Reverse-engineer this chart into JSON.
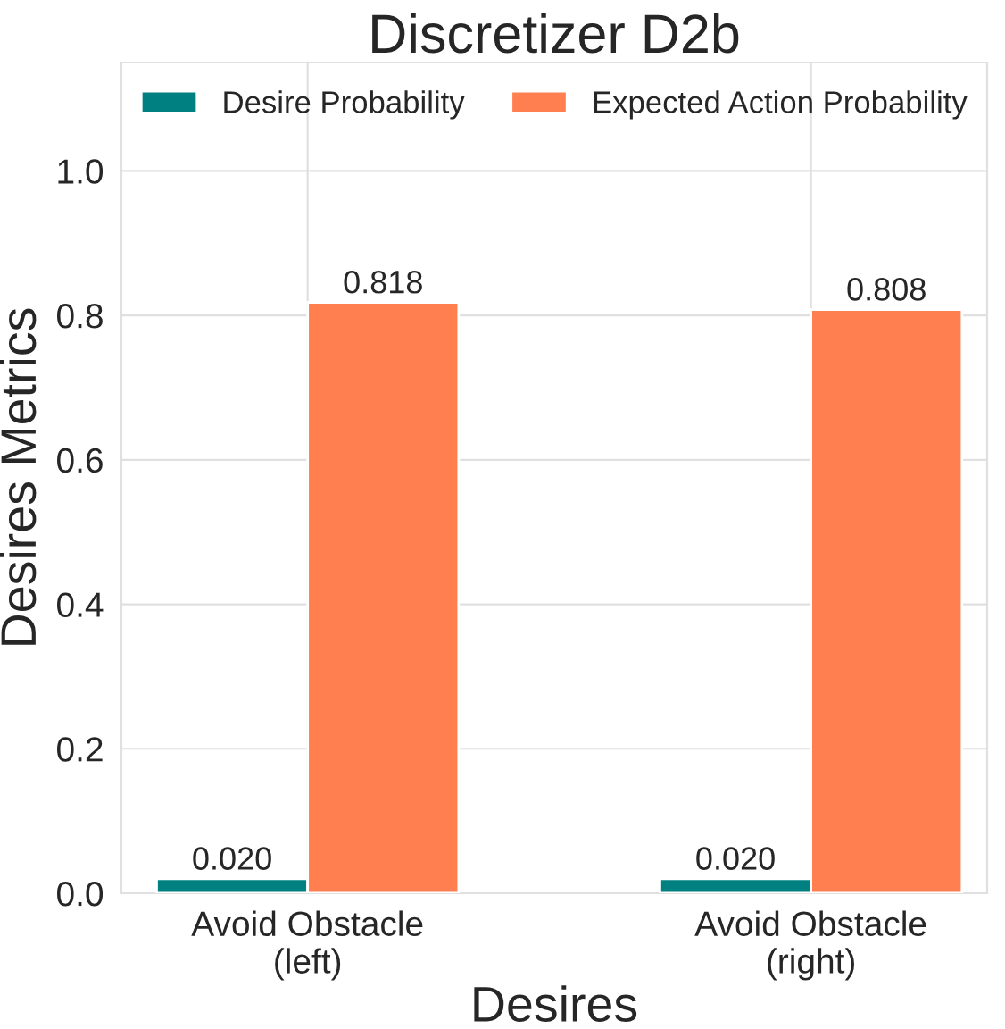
{
  "chart_data": {
    "type": "bar",
    "title": "Discretizer D2b",
    "xlabel": "Desires",
    "ylabel": "Desires Metrics",
    "categories": [
      "Avoid Obstacle\n(left)",
      "Avoid Obstacle\n(right)"
    ],
    "series": [
      {
        "name": "Desire Probability",
        "color": "#008080",
        "values": [
          0.02,
          0.02
        ],
        "value_labels": [
          "0.020",
          "0.020"
        ]
      },
      {
        "name": "Expected Action Probability",
        "color": "#ff7f50",
        "values": [
          0.818,
          0.808
        ],
        "value_labels": [
          "0.818",
          "0.808"
        ]
      }
    ],
    "ylim": [
      0,
      1.15
    ],
    "yticks": [
      {
        "value": 0,
        "label": "0.0"
      },
      {
        "value": 0.2,
        "label": "0.2"
      },
      {
        "value": 0.4,
        "label": "0.4"
      },
      {
        "value": 0.6,
        "label": "0.6"
      },
      {
        "value": 0.8,
        "label": "0.8"
      },
      {
        "value": 1.0,
        "label": "1.0"
      }
    ],
    "grid": true,
    "legend": "top"
  }
}
